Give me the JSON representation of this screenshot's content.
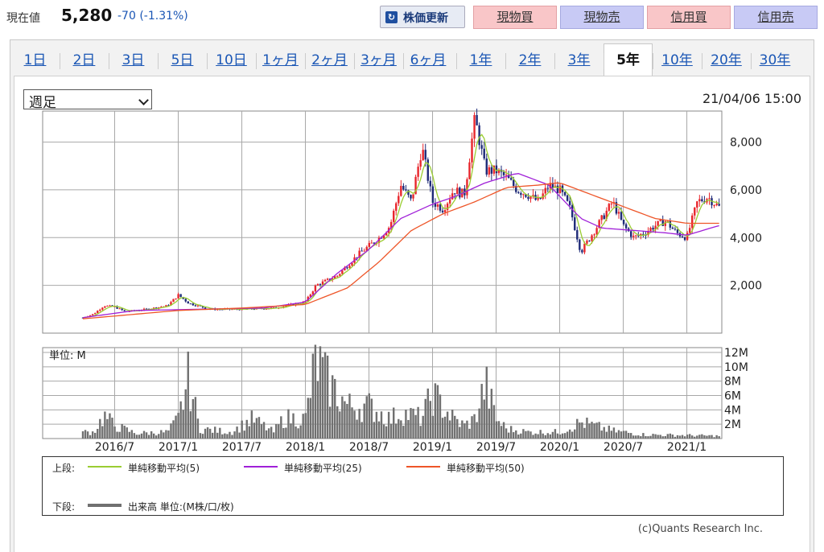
{
  "quote": {
    "label": "現在値",
    "price": "5,280",
    "change": "-70 (-1.31%)"
  },
  "buttons": {
    "update": "株価更新",
    "spot_buy": "現物買",
    "spot_sell": "現物売",
    "margin_buy": "信用買",
    "margin_sell": "信用売"
  },
  "tabs": [
    "1日",
    "2日",
    "3日",
    "5日",
    "10日",
    "1ヶ月",
    "2ヶ月",
    "3ヶ月",
    "6ヶ月",
    "1年",
    "2年",
    "3年",
    "5年",
    "10年",
    "20年",
    "30年"
  ],
  "active_tab": "5年",
  "period_select": {
    "value": "週足"
  },
  "datetime": "21/04/06 15:00",
  "legend": {
    "upper_label": "上段:",
    "lower_label": "下段:",
    "ma5": "単純移動平均(5)",
    "ma25": "単純移動平均(25)",
    "ma50": "単純移動平均(50)",
    "volume": "出来高 単位:(M株/口/枚)"
  },
  "credit": "(c)Quants Research Inc.",
  "colors": {
    "up": "#e8262c",
    "down": "#1e2a78",
    "ma5": "#9acd32",
    "ma25": "#a020d8",
    "ma50": "#ee5528",
    "volume": "#707070",
    "grid": "#a8a8a8"
  },
  "chart_data": [
    {
      "type": "candlestick",
      "title": "",
      "ylim": [
        0,
        9300
      ],
      "yticks": [
        2000,
        4000,
        6000,
        8000
      ],
      "ytick_labels": [
        "2,000",
        "4,000",
        "6,000",
        "8,000"
      ],
      "x_labels": [
        "2016/7",
        "2017/1",
        "2017/7",
        "2018/1",
        "2018/7",
        "2019/1",
        "2019/7",
        "2020/1",
        "2020/7",
        "2021/1"
      ],
      "x_label_dates": [
        "2016-07",
        "2017-01",
        "2017-07",
        "2018-01",
        "2018-07",
        "2019-01",
        "2019-07",
        "2020-01",
        "2020-07",
        "2021-01"
      ],
      "start": "2016-04",
      "end": "2021-04",
      "price_path": [
        [
          "2016-04",
          650
        ],
        [
          "2016-05",
          800
        ],
        [
          "2016-06",
          1150
        ],
        [
          "2016-07",
          1100
        ],
        [
          "2016-08",
          900
        ],
        [
          "2016-10",
          1000
        ],
        [
          "2016-12",
          1150
        ],
        [
          "2017-01",
          1600
        ],
        [
          "2017-02",
          1250
        ],
        [
          "2017-04",
          1000
        ],
        [
          "2017-07",
          1000
        ],
        [
          "2017-10",
          1050
        ],
        [
          "2018-01",
          1300
        ],
        [
          "2018-02",
          2000
        ],
        [
          "2018-04",
          2400
        ],
        [
          "2018-06",
          3300
        ],
        [
          "2018-08",
          4000
        ],
        [
          "2018-09",
          4500
        ],
        [
          "2018-10",
          6200
        ],
        [
          "2018-11",
          5500
        ],
        [
          "2018-12",
          7800
        ],
        [
          "2019-01",
          5500
        ],
        [
          "2019-02",
          5200
        ],
        [
          "2019-03",
          6000
        ],
        [
          "2019-04",
          5800
        ],
        [
          "2019-05",
          9000
        ],
        [
          "2019-06",
          6800
        ],
        [
          "2019-07",
          6800
        ],
        [
          "2019-08",
          6500
        ],
        [
          "2019-09",
          6000
        ],
        [
          "2019-10",
          5800
        ],
        [
          "2019-11",
          5500
        ],
        [
          "2019-12",
          6200
        ],
        [
          "2020-01",
          6000
        ],
        [
          "2020-02",
          5200
        ],
        [
          "2020-03",
          3400
        ],
        [
          "2020-05",
          4800
        ],
        [
          "2020-06",
          5500
        ],
        [
          "2020-07",
          4500
        ],
        [
          "2020-08",
          4000
        ],
        [
          "2020-09",
          4200
        ],
        [
          "2020-10",
          4500
        ],
        [
          "2020-11",
          4700
        ],
        [
          "2020-12",
          4200
        ],
        [
          "2021-01",
          4000
        ],
        [
          "2021-02",
          5500
        ],
        [
          "2021-03",
          5700
        ],
        [
          "2021-04",
          5280
        ]
      ],
      "ma25": [
        [
          "2016-04",
          650
        ],
        [
          "2016-09",
          950
        ],
        [
          "2017-03",
          1000
        ],
        [
          "2017-09",
          1050
        ],
        [
          "2018-01",
          1300
        ],
        [
          "2018-04",
          2500
        ],
        [
          "2018-07",
          3500
        ],
        [
          "2018-10",
          4800
        ],
        [
          "2019-01",
          5400
        ],
        [
          "2019-03",
          5700
        ],
        [
          "2019-06",
          6300
        ],
        [
          "2019-09",
          6700
        ],
        [
          "2019-12",
          6200
        ],
        [
          "2020-03",
          4800
        ],
        [
          "2020-05",
          4400
        ],
        [
          "2020-08",
          4300
        ],
        [
          "2020-11",
          4200
        ],
        [
          "2021-01",
          4100
        ],
        [
          "2021-04",
          4500
        ]
      ],
      "ma50": [
        [
          "2016-04",
          600
        ],
        [
          "2017-01",
          950
        ],
        [
          "2017-07",
          1050
        ],
        [
          "2018-01",
          1200
        ],
        [
          "2018-05",
          1900
        ],
        [
          "2018-08",
          3000
        ],
        [
          "2018-11",
          4300
        ],
        [
          "2019-02",
          5000
        ],
        [
          "2019-05",
          5500
        ],
        [
          "2019-08",
          6100
        ],
        [
          "2019-11",
          6200
        ],
        [
          "2020-01",
          6300
        ],
        [
          "2020-04",
          5800
        ],
        [
          "2020-07",
          5300
        ],
        [
          "2020-10",
          4800
        ],
        [
          "2021-01",
          4600
        ],
        [
          "2021-04",
          4600
        ]
      ]
    },
    {
      "type": "bar",
      "title": "",
      "unit_label": "単位: M",
      "ylim": [
        0,
        12
      ],
      "yticks": [
        2,
        4,
        6,
        8,
        10,
        12
      ],
      "ytick_labels": [
        "2M",
        "4M",
        "6M",
        "8M",
        "10M",
        "12M"
      ],
      "volume_path": [
        [
          "2016-05",
          1
        ],
        [
          "2016-06",
          3.5
        ],
        [
          "2016-07",
          2
        ],
        [
          "2016-09",
          0.8
        ],
        [
          "2016-12",
          1
        ],
        [
          "2017-01",
          3
        ],
        [
          "2017-02",
          9.5
        ],
        [
          "2017-03",
          1.5
        ],
        [
          "2017-06",
          1
        ],
        [
          "2017-08",
          3
        ],
        [
          "2017-10",
          1
        ],
        [
          "2017-11",
          3.2
        ],
        [
          "2018-01",
          3
        ],
        [
          "2018-02",
          12.2
        ],
        [
          "2018-03",
          9
        ],
        [
          "2018-05",
          5
        ],
        [
          "2018-07",
          5
        ],
        [
          "2018-09",
          3
        ],
        [
          "2018-10",
          4
        ],
        [
          "2018-12",
          3.2
        ],
        [
          "2019-01",
          6.8
        ],
        [
          "2019-03",
          3
        ],
        [
          "2019-04",
          2
        ],
        [
          "2019-05",
          3
        ],
        [
          "2019-06",
          8.5
        ],
        [
          "2019-07",
          3
        ],
        [
          "2019-08",
          1.5
        ],
        [
          "2019-10",
          1
        ],
        [
          "2020-01",
          1
        ],
        [
          "2020-03",
          2.5
        ],
        [
          "2020-06",
          1.2
        ],
        [
          "2020-09",
          0.6
        ],
        [
          "2021-01",
          0.5
        ],
        [
          "2021-04",
          0.4
        ]
      ]
    }
  ]
}
